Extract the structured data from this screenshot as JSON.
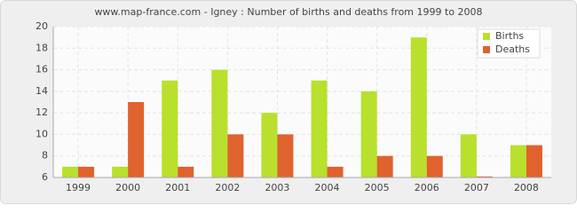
{
  "chart_data": {
    "type": "bar",
    "title": "www.map-france.com - Igney : Number of births and deaths from 1999 to 2008",
    "categories": [
      "1999",
      "2000",
      "2001",
      "2002",
      "2003",
      "2004",
      "2005",
      "2006",
      "2007",
      "2008"
    ],
    "series": [
      {
        "name": "Births",
        "color": "#b8e02c",
        "values": [
          7,
          7,
          15,
          16,
          12,
          15,
          14,
          19,
          10,
          9
        ]
      },
      {
        "name": "Deaths",
        "color": "#e0622d",
        "values": [
          7,
          13,
          7,
          10,
          10,
          7,
          8,
          8,
          6.1,
          9
        ]
      }
    ],
    "ylim": [
      6,
      20
    ],
    "yticks": [
      6,
      8,
      10,
      12,
      14,
      16,
      18,
      20
    ],
    "grid": true,
    "legend": "top-right"
  }
}
